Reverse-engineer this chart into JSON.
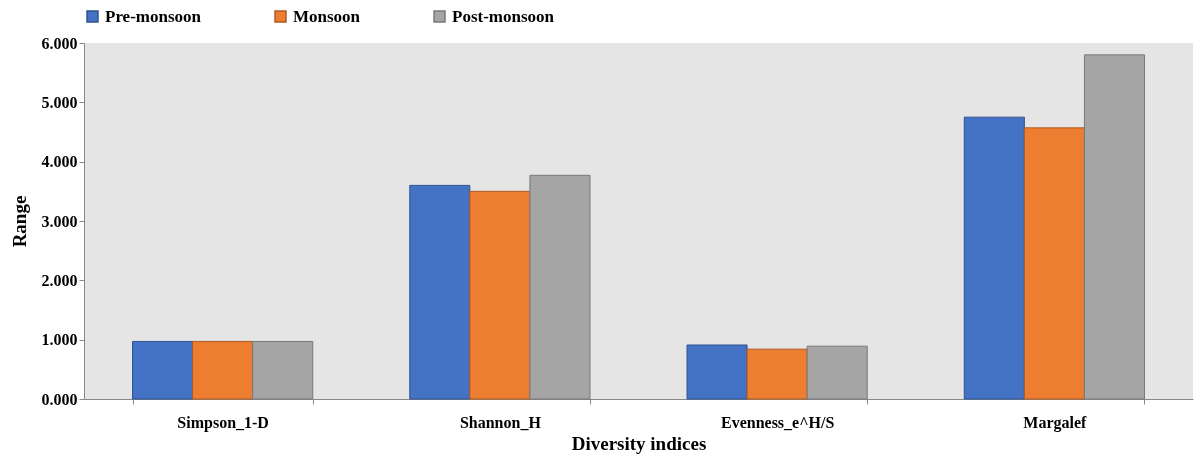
{
  "chart_data": {
    "type": "bar",
    "xlabel": "Diversity indices",
    "ylabel": "Range",
    "categories": [
      "Simpson_1-D",
      "Shannon_H",
      "Evenness_e^H/S",
      "Margalef"
    ],
    "series": [
      {
        "name": "Pre-monsoon",
        "color": "#4472c4",
        "values": [
          0.97,
          3.6,
          0.91,
          4.75
        ]
      },
      {
        "name": "Monsoon",
        "color": "#ed7d31",
        "values": [
          0.97,
          3.5,
          0.84,
          4.57
        ]
      },
      {
        "name": "Post-monsoon",
        "color": "#a5a5a5",
        "values": [
          0.97,
          3.77,
          0.89,
          5.8
        ]
      }
    ],
    "ylim": [
      0,
      6
    ],
    "yticks": [
      {
        "value": 0,
        "label": "0.000"
      },
      {
        "value": 1,
        "label": "1.000"
      },
      {
        "value": 2,
        "label": "2.000"
      },
      {
        "value": 3,
        "label": "3.000"
      },
      {
        "value": 4,
        "label": "4.000"
      },
      {
        "value": 5,
        "label": "5.000"
      },
      {
        "value": 6,
        "label": "6.000"
      }
    ],
    "grid": false,
    "legend": "top"
  }
}
